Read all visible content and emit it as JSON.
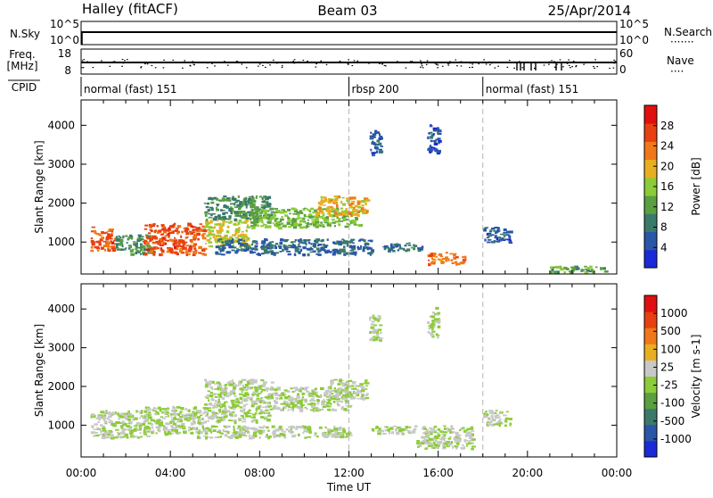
{
  "header": {
    "radar": "Halley (fitACF)",
    "beam": "Beam 03",
    "date": "25/Apr/2014"
  },
  "panel_labels": {
    "nsky": "N.Sky",
    "nsky_top": "10^5",
    "nsky_bottom": "10^0",
    "nsearch": "N.Search",
    "nsearch_top": "10^5",
    "nsearch_bottom": "10^0",
    "freq_line1": "Freq.",
    "freq_line2": "[MHz]",
    "freq_top": "18",
    "freq_bottom": "8",
    "nave": "Nave",
    "nave_top": "60",
    "nave_bottom": "0",
    "cpid": "CPID"
  },
  "cpid_segments": [
    {
      "label": "normal (fast) 151",
      "start_h": 0,
      "end_h": 12
    },
    {
      "label": "rbsp 200",
      "start_h": 12,
      "end_h": 18
    },
    {
      "label": "normal (fast) 151",
      "start_h": 18,
      "end_h": 24
    }
  ],
  "chart_data": [
    {
      "type": "heatmap",
      "title": "Power",
      "xlabel": "Time UT",
      "ylabel": "Slant Range [km]",
      "x_ticks": [
        "00:00",
        "04:00",
        "08:00",
        "12:00",
        "16:00",
        "20:00",
        "00:00"
      ],
      "xlim_hours": [
        0,
        24
      ],
      "y_ticks": [
        1000,
        2000,
        3000,
        4000
      ],
      "ylim_km": [
        180,
        4650
      ],
      "colorbar": {
        "label": "Power [dB]",
        "ticks": [
          "4",
          "8",
          "12",
          "16",
          "20",
          "24",
          "28"
        ],
        "range": [
          0,
          32
        ],
        "colors": [
          "#1a2ad8",
          "#2a56a8",
          "#3a7a6a",
          "#5aa040",
          "#8ccc38",
          "#e8b020",
          "#f07818",
          "#e84010",
          "#e01010"
        ]
      },
      "regions": [
        {
          "t0": 0.4,
          "t1": 1.5,
          "r0": 800,
          "r1": 1400,
          "v": 26
        },
        {
          "t0": 1.5,
          "t1": 3.2,
          "r0": 700,
          "r1": 1200,
          "v": 10
        },
        {
          "t0": 2.8,
          "t1": 5.5,
          "r0": 700,
          "r1": 1500,
          "v": 26
        },
        {
          "t0": 5.5,
          "t1": 7.5,
          "r0": 900,
          "r1": 1600,
          "v": 18
        },
        {
          "t0": 5.5,
          "t1": 8.5,
          "r0": 1600,
          "r1": 2200,
          "v": 10
        },
        {
          "t0": 7.5,
          "t1": 12.5,
          "r0": 1400,
          "r1": 1900,
          "v": 14
        },
        {
          "t0": 10.5,
          "t1": 12.8,
          "r0": 1700,
          "r1": 2200,
          "v": 20
        },
        {
          "t0": 6.0,
          "t1": 13.0,
          "r0": 700,
          "r1": 1100,
          "v": 7
        },
        {
          "t0": 13.5,
          "t1": 15.3,
          "r0": 800,
          "r1": 1000,
          "v": 8
        },
        {
          "t0": 15.5,
          "t1": 17.2,
          "r0": 450,
          "r1": 750,
          "v": 24
        },
        {
          "t0": 18.0,
          "t1": 19.2,
          "r0": 1000,
          "r1": 1400,
          "v": 6
        },
        {
          "t0": 12.9,
          "t1": 13.4,
          "r0": 3200,
          "r1": 3900,
          "v": 6
        },
        {
          "t0": 15.5,
          "t1": 16.0,
          "r0": 3300,
          "r1": 4100,
          "v": 5
        },
        {
          "t0": 21.0,
          "t1": 23.5,
          "r0": 250,
          "r1": 400,
          "v": 12
        }
      ]
    },
    {
      "type": "heatmap",
      "title": "Velocity",
      "xlabel": "Time UT",
      "ylabel": "Slant Range [km]",
      "x_ticks": [
        "00:00",
        "04:00",
        "08:00",
        "12:00",
        "16:00",
        "20:00",
        "00:00"
      ],
      "xlim_hours": [
        0,
        24
      ],
      "y_ticks": [
        1000,
        2000,
        3000,
        4000
      ],
      "ylim_km": [
        180,
        4650
      ],
      "colorbar": {
        "label": "Velocity [m s-1]",
        "ticks": [
          "1000",
          "500",
          "100",
          "25",
          "-25",
          "-100",
          "-500",
          "-1000"
        ],
        "range": [
          -1250,
          1250
        ],
        "colors": [
          "#1a2ad8",
          "#2a56a8",
          "#3a7a6a",
          "#5aa040",
          "#8ccc38",
          "#c8c8c8",
          "#e8b020",
          "#f07818",
          "#e84010",
          "#e01010"
        ]
      },
      "regions": [
        {
          "t0": 0.4,
          "t1": 3.0,
          "r0": 700,
          "r1": 1400,
          "v": 6
        },
        {
          "t0": 2.8,
          "t1": 5.5,
          "r0": 800,
          "r1": 1500,
          "v": 4
        },
        {
          "t0": 5.5,
          "t1": 8.5,
          "r0": 1100,
          "r1": 2200,
          "v": 7
        },
        {
          "t0": 8.5,
          "t1": 12.0,
          "r0": 1400,
          "r1": 2000,
          "v": 7
        },
        {
          "t0": 11.0,
          "t1": 12.8,
          "r0": 1700,
          "r1": 2200,
          "v": 8
        },
        {
          "t0": 5.0,
          "t1": 12.0,
          "r0": 700,
          "r1": 1000,
          "v": 5
        },
        {
          "t0": 13.0,
          "t1": 17.5,
          "r0": 800,
          "r1": 1000,
          "v": 7
        },
        {
          "t0": 15.0,
          "t1": 17.5,
          "r0": 400,
          "r1": 800,
          "v": 7
        },
        {
          "t0": 18.0,
          "t1": 19.2,
          "r0": 1000,
          "r1": 1400,
          "v": 8
        },
        {
          "t0": 12.9,
          "t1": 13.4,
          "r0": 3200,
          "r1": 3900,
          "v": 8
        },
        {
          "t0": 15.5,
          "t1": 16.0,
          "r0": 3300,
          "r1": 4100,
          "v": 8
        }
      ]
    }
  ],
  "colors": {
    "dashed_marker": "#b4b4b4",
    "axis": "#000000"
  },
  "marker_hours": [
    12,
    18
  ]
}
